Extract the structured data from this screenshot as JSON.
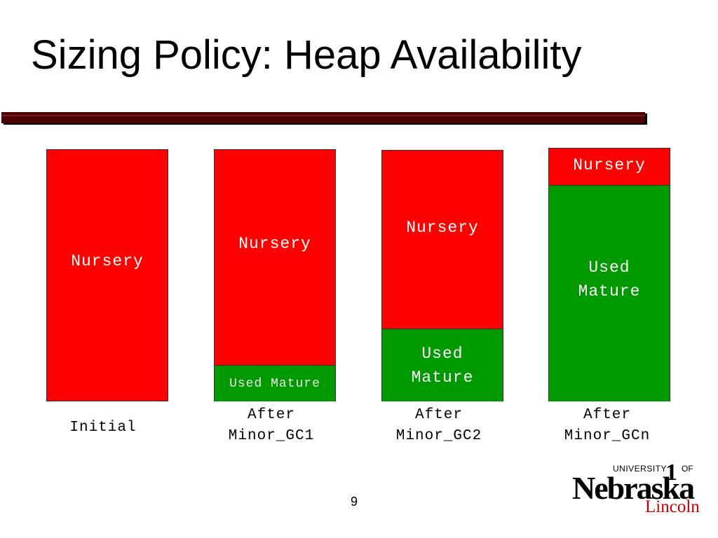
{
  "slide": {
    "title": "Sizing Policy: Heap Availability",
    "page_number": "9"
  },
  "colors": {
    "nursery": "#ff0000",
    "used_mature": "#009900",
    "title_rule": "#4d0000",
    "logo_lincoln": "#cc0000"
  },
  "columns": [
    {
      "nursery_label": "Nursery",
      "mature_label": "",
      "caption": "Initial",
      "nursery_fraction": 1.0,
      "mature_fraction": 0.0
    },
    {
      "nursery_label": "Nursery",
      "mature_label": "Used Mature",
      "caption": "After\nMinor_GC1",
      "nursery_fraction": 0.86,
      "mature_fraction": 0.14
    },
    {
      "nursery_label": "Nursery",
      "mature_label": "Used\nMature",
      "caption": "After\nMinor_GC2",
      "nursery_fraction": 0.71,
      "mature_fraction": 0.29
    },
    {
      "nursery_label": "Nursery",
      "mature_label": "Used\nMature",
      "caption": "After\nMinor_GCn",
      "nursery_fraction": 0.14,
      "mature_fraction": 0.86
    }
  ],
  "logo": {
    "university": "UNIVERSITY",
    "one": "1",
    "of": "OF",
    "name": "Nebraska",
    "campus": "Lincoln"
  }
}
